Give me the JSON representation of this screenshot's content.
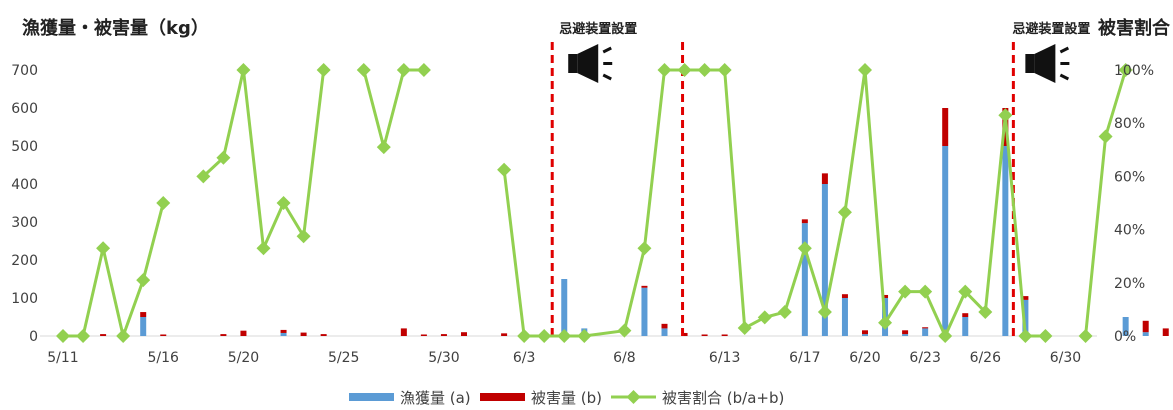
{
  "chart_data": {
    "type": "bar",
    "left_axis_title": "漁獲量・被害量（kg）",
    "right_axis_title": "被害割合",
    "ylim": [
      0,
      700
    ],
    "y_ticks": [
      0,
      100,
      200,
      300,
      400,
      500,
      600,
      700
    ],
    "y2lim": [
      0,
      1
    ],
    "y2_ticks": [
      "0%",
      "20%",
      "40%",
      "60%",
      "80%",
      "100%"
    ],
    "x_tick_labels": [
      {
        "day": 0,
        "label": "5/11"
      },
      {
        "day": 5,
        "label": "5/16"
      },
      {
        "day": 9,
        "label": "5/20"
      },
      {
        "day": 14,
        "label": "5/25"
      },
      {
        "day": 19,
        "label": "5/30"
      },
      {
        "day": 23,
        "label": "6/3"
      },
      {
        "day": 28,
        "label": "6/8"
      },
      {
        "day": 33,
        "label": "6/13"
      },
      {
        "day": 37,
        "label": "6/17"
      },
      {
        "day": 40,
        "label": "6/20"
      },
      {
        "day": 43,
        "label": "6/23"
      },
      {
        "day": 46,
        "label": "6/26"
      },
      {
        "day": 50,
        "label": "6/30"
      }
    ],
    "annotations": [
      {
        "label": "忌避装置設置",
        "day": 24.4
      },
      {
        "label": "忌避装置設置",
        "day": 30.9
      },
      {
        "label": "忌避装置設置",
        "day": 47.4
      }
    ],
    "annotation_label": "忌避装置設置",
    "legend": {
      "catch": "漁獲量 (a)",
      "damage": "被害量 (b)",
      "ratio": "被害割合 (b/a+b)"
    },
    "colors": {
      "catch": "#5b9bd5",
      "damage": "#c00000",
      "ratio": "#92d050",
      "marker_line": "#e00000"
    },
    "bars": [
      {
        "day": 2,
        "catch": 0,
        "damage": 5
      },
      {
        "day": 4,
        "catch": 50,
        "damage": 13
      },
      {
        "day": 5,
        "catch": 0,
        "damage": 4
      },
      {
        "day": 8,
        "catch": 0,
        "damage": 5
      },
      {
        "day": 9,
        "catch": 0,
        "damage": 14
      },
      {
        "day": 11,
        "catch": 8,
        "damage": 8
      },
      {
        "day": 12,
        "catch": 0,
        "damage": 9
      },
      {
        "day": 13,
        "catch": 0,
        "damage": 5
      },
      {
        "day": 17,
        "catch": 0,
        "damage": 20
      },
      {
        "day": 18,
        "catch": 0,
        "damage": 4
      },
      {
        "day": 19,
        "catch": 0,
        "damage": 5
      },
      {
        "day": 20,
        "catch": 0,
        "damage": 10
      },
      {
        "day": 22,
        "catch": 0,
        "damage": 7
      },
      {
        "day": 25,
        "catch": 150,
        "damage": 0
      },
      {
        "day": 26,
        "catch": 20,
        "damage": 0
      },
      {
        "day": 29,
        "catch": 127,
        "damage": 5
      },
      {
        "day": 30,
        "catch": 20,
        "damage": 12
      },
      {
        "day": 31,
        "catch": 0,
        "damage": 8
      },
      {
        "day": 32,
        "catch": 0,
        "damage": 4
      },
      {
        "day": 33,
        "catch": 0,
        "damage": 4
      },
      {
        "day": 37,
        "catch": 297,
        "damage": 10
      },
      {
        "day": 38,
        "catch": 400,
        "damage": 28
      },
      {
        "day": 39,
        "catch": 100,
        "damage": 10
      },
      {
        "day": 40,
        "catch": 5,
        "damage": 10
      },
      {
        "day": 41,
        "catch": 100,
        "damage": 8
      },
      {
        "day": 42,
        "catch": 5,
        "damage": 10
      },
      {
        "day": 43,
        "catch": 20,
        "damage": 3
      },
      {
        "day": 44,
        "catch": 500,
        "damage": 100
      },
      {
        "day": 45,
        "catch": 50,
        "damage": 10
      },
      {
        "day": 47,
        "catch": 500,
        "damage": 100
      },
      {
        "day": 48,
        "catch": 95,
        "damage": 10
      },
      {
        "day": 49,
        "catch": 0,
        "damage": 10
      },
      {
        "day": 53,
        "catch": 50,
        "damage": 0
      },
      {
        "day": 54,
        "catch": 10,
        "damage": 30
      },
      {
        "day": 55,
        "catch": 0,
        "damage": 20
      }
    ],
    "ratio_segments": [
      [
        {
          "day": 0,
          "value": 0.0
        },
        {
          "day": 1,
          "value": 0.0
        },
        {
          "day": 2,
          "value": 0.33
        },
        {
          "day": 3,
          "value": 0.0
        },
        {
          "day": 4,
          "value": 0.21
        },
        {
          "day": 5,
          "value": 0.5
        }
      ],
      [
        {
          "day": 7,
          "value": 0.6
        },
        {
          "day": 8,
          "value": 0.67
        },
        {
          "day": 9,
          "value": 1.0
        },
        {
          "day": 10,
          "value": 0.33
        },
        {
          "day": 11,
          "value": 0.5
        },
        {
          "day": 12,
          "value": 0.375
        },
        {
          "day": 13,
          "value": 1.0
        }
      ],
      [
        {
          "day": 15,
          "value": 1.0
        },
        {
          "day": 16,
          "value": 0.71
        },
        {
          "day": 17,
          "value": 1.0
        },
        {
          "day": 18,
          "value": 1.0
        }
      ],
      [
        {
          "day": 22,
          "value": 0.625
        },
        {
          "day": 23,
          "value": 0.0
        },
        {
          "day": 24,
          "value": 0.0
        },
        {
          "day": 25,
          "value": 0.0
        },
        {
          "day": 26,
          "value": 0.0
        },
        {
          "day": 28,
          "value": 0.02
        },
        {
          "day": 29,
          "value": 0.33
        },
        {
          "day": 30,
          "value": 1.0
        },
        {
          "day": 31,
          "value": 1.0
        },
        {
          "day": 32,
          "value": 1.0
        },
        {
          "day": 33,
          "value": 1.0
        },
        {
          "day": 34,
          "value": 0.03
        },
        {
          "day": 35,
          "value": 0.07
        },
        {
          "day": 36,
          "value": 0.09
        },
        {
          "day": 37,
          "value": 0.33
        },
        {
          "day": 38,
          "value": 0.09
        },
        {
          "day": 39,
          "value": 0.465
        },
        {
          "day": 40,
          "value": 1.0
        },
        {
          "day": 41,
          "value": 0.05
        },
        {
          "day": 42,
          "value": 0.167
        },
        {
          "day": 43,
          "value": 0.167
        },
        {
          "day": 44,
          "value": 0.0
        },
        {
          "day": 45,
          "value": 0.167
        },
        {
          "day": 46,
          "value": 0.09
        },
        {
          "day": 47,
          "value": 0.83
        },
        {
          "day": 48,
          "value": 0.0
        },
        {
          "day": 49,
          "value": 0.0
        }
      ],
      [
        {
          "day": 51,
          "value": 0.0
        },
        {
          "day": 52,
          "value": 0.75
        },
        {
          "day": 53,
          "value": 1.0
        }
      ]
    ]
  }
}
